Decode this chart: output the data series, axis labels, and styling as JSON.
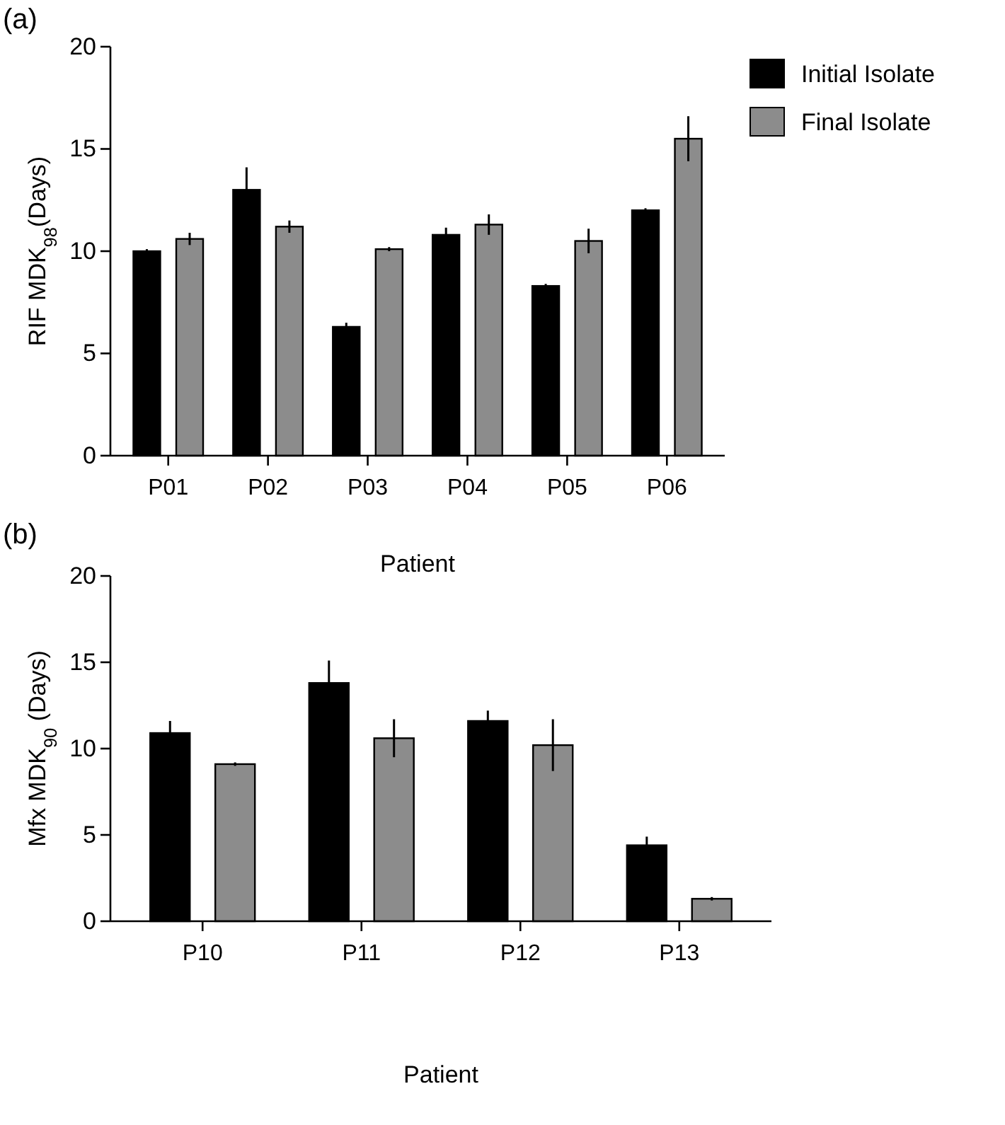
{
  "chart_data": [
    {
      "type": "bar",
      "title": "(a)",
      "xlabel": "Patient",
      "ylabel": "RIF MDK$_{98}$(Days)",
      "categories": [
        "P01",
        "P02",
        "P03",
        "P04",
        "P05",
        "P06"
      ],
      "ylim": [
        0,
        20
      ],
      "yticks": [
        0,
        5,
        10,
        15,
        20
      ],
      "legend": "top right",
      "series": [
        {
          "name": "Initial Isolate",
          "color": "#000000",
          "values": [
            10.0,
            13.0,
            6.3,
            10.8,
            8.3,
            12.0
          ],
          "errors": [
            0.1,
            1.1,
            0.2,
            0.35,
            0.1,
            0.1
          ]
        },
        {
          "name": "Final Isolate",
          "color": "#8c8c8c",
          "values": [
            10.6,
            11.2,
            10.1,
            11.3,
            10.5,
            15.5
          ],
          "errors": [
            0.3,
            0.3,
            0.1,
            0.5,
            0.6,
            1.1
          ]
        }
      ]
    },
    {
      "type": "bar",
      "title": "(b)",
      "xlabel": "Patient",
      "ylabel": "Mfx MDK$_{90}$ (Days)",
      "categories": [
        "P10",
        "P11",
        "P12",
        "P13"
      ],
      "ylim": [
        0,
        20
      ],
      "yticks": [
        0,
        5,
        10,
        15,
        20
      ],
      "series": [
        {
          "color": "#000000",
          "values": [
            10.9,
            13.8,
            11.6,
            4.4
          ],
          "errors": [
            0.7,
            1.3,
            0.6,
            0.5
          ]
        },
        {
          "color": "#8c8c8c",
          "values": [
            9.1,
            10.6,
            10.2,
            1.3
          ],
          "errors": [
            0.1,
            1.1,
            1.5,
            0.1
          ]
        }
      ]
    }
  ]
}
